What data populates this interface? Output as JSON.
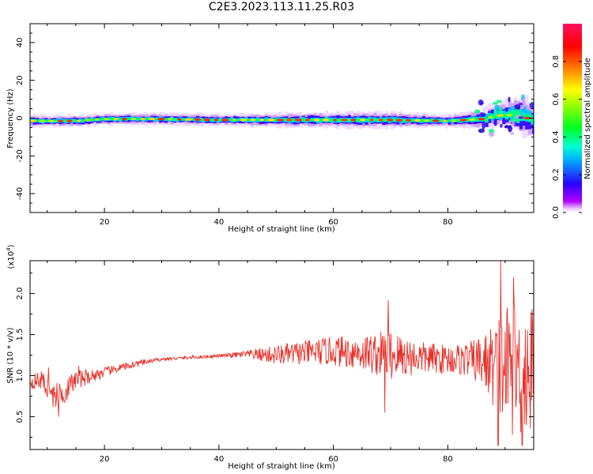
{
  "title": "C2E3.2023.113.11.25.R03",
  "colors": {
    "snr_line": "#e8302a",
    "axis": "#000000",
    "background": "#ffffff"
  },
  "chart_data": [
    {
      "type": "heatmap",
      "title": "",
      "xlabel": "Height of straight line (km)",
      "ylabel": "Frequency (Hz)",
      "xlim": [
        7,
        95
      ],
      "ylim": [
        -50,
        50
      ],
      "xticks": [
        20,
        40,
        60,
        80
      ],
      "yticks": [
        40,
        20,
        0,
        -20,
        -40
      ],
      "ytick_labels": [
        "40",
        "20",
        "0",
        "-20",
        "-40"
      ],
      "colorbar": {
        "label": "Normalized spectral amplitude",
        "range": [
          0.0,
          1.0
        ],
        "ticks": [
          0.0,
          0.2,
          0.4,
          0.6,
          0.8
        ],
        "tick_labels": [
          "0.0",
          "0.2",
          "0.4",
          "0.6",
          "0.8"
        ],
        "colormap": "gist_rainbow (magenta-blue-cyan-green-yellow-red-pink)"
      },
      "band": {
        "description": "Narrow high-amplitude band centered near 0 Hz across all heights; broadens and becomes irregular above ~85 km",
        "center_freq_hz": [
          {
            "x": 8,
            "y": -1.5
          },
          {
            "x": 15,
            "y": -1.5
          },
          {
            "x": 20,
            "y": -0.5
          },
          {
            "x": 30,
            "y": -0.5
          },
          {
            "x": 40,
            "y": -1
          },
          {
            "x": 50,
            "y": -1
          },
          {
            "x": 60,
            "y": -1
          },
          {
            "x": 70,
            "y": -1
          },
          {
            "x": 80,
            "y": -1.5
          },
          {
            "x": 86,
            "y": -0.5
          },
          {
            "x": 90,
            "y": 2
          },
          {
            "x": 94,
            "y": 0
          }
        ],
        "half_width_hz": [
          {
            "x": 8,
            "y": 3
          },
          {
            "x": 40,
            "y": 3
          },
          {
            "x": 60,
            "y": 4
          },
          {
            "x": 70,
            "y": 4
          },
          {
            "x": 80,
            "y": 3
          },
          {
            "x": 88,
            "y": 6
          },
          {
            "x": 94,
            "y": 10
          }
        ]
      }
    },
    {
      "type": "line",
      "title": "",
      "xlabel": "Height of straight line (km)",
      "ylabel": "SNR (10 * v/v)",
      "y_multiplier_label": "(x10",
      "y_multiplier_exp": "4",
      "y_multiplier_close": ")",
      "xlim": [
        7,
        95
      ],
      "ylim": [
        0.1,
        2.4
      ],
      "xticks": [
        20,
        40,
        60,
        80
      ],
      "yticks": [
        0.5,
        1.0,
        1.5,
        2.0
      ],
      "ytick_labels": [
        "0.5",
        "1.0",
        "1.5",
        "2.0"
      ],
      "series": [
        {
          "envelope": [
            {
              "x": 7,
              "mean": 0.92,
              "amp": 0.08
            },
            {
              "x": 9,
              "mean": 0.95,
              "amp": 0.12
            },
            {
              "x": 11,
              "mean": 0.75,
              "amp": 0.15
            },
            {
              "x": 13,
              "mean": 0.8,
              "amp": 0.15
            },
            {
              "x": 15,
              "mean": 0.95,
              "amp": 0.12
            },
            {
              "x": 18,
              "mean": 1.0,
              "amp": 0.08
            },
            {
              "x": 22,
              "mean": 1.08,
              "amp": 0.05
            },
            {
              "x": 26,
              "mean": 1.15,
              "amp": 0.04
            },
            {
              "x": 30,
              "mean": 1.2,
              "amp": 0.02
            },
            {
              "x": 40,
              "mean": 1.24,
              "amp": 0.02
            },
            {
              "x": 45,
              "mean": 1.26,
              "amp": 0.05
            },
            {
              "x": 50,
              "mean": 1.25,
              "amp": 0.12
            },
            {
              "x": 55,
              "mean": 1.28,
              "amp": 0.15
            },
            {
              "x": 60,
              "mean": 1.3,
              "amp": 0.18
            },
            {
              "x": 65,
              "mean": 1.28,
              "amp": 0.22
            },
            {
              "x": 70,
              "mean": 1.25,
              "amp": 0.32
            },
            {
              "x": 75,
              "mean": 1.22,
              "amp": 0.2
            },
            {
              "x": 80,
              "mean": 1.2,
              "amp": 0.18
            },
            {
              "x": 84,
              "mean": 1.2,
              "amp": 0.22
            },
            {
              "x": 87,
              "mean": 1.15,
              "amp": 0.4
            },
            {
              "x": 90,
              "mean": 1.1,
              "amp": 0.8
            },
            {
              "x": 95,
              "mean": 1.05,
              "amp": 0.85
            }
          ],
          "peaks": [
            {
              "x": 10.2,
              "y": 1.1
            },
            {
              "x": 12.0,
              "y": 0.5
            },
            {
              "x": 15.5,
              "y": 1.12
            },
            {
              "x": 69.6,
              "y": 1.92
            },
            {
              "x": 69.0,
              "y": 0.55
            },
            {
              "x": 89.2,
              "y": 2.4
            },
            {
              "x": 88.8,
              "y": 0.15
            },
            {
              "x": 91.5,
              "y": 2.2
            },
            {
              "x": 93.0,
              "y": 0.15
            }
          ]
        }
      ]
    }
  ]
}
